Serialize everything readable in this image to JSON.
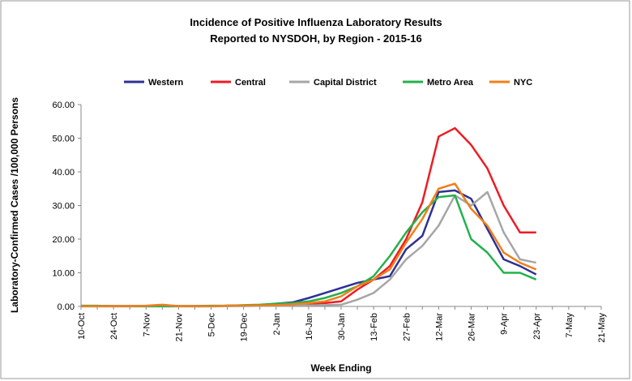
{
  "chart_data": {
    "type": "line",
    "title": "Incidence of Positive Influenza Laboratory Results",
    "subtitle": "Reported to NYSDOH, by Region - 2015-16",
    "x_label": "Week Ending",
    "y_label": "Laboratory-Confirmed Cases /100,000 Persons",
    "categories": [
      "10-Oct",
      null,
      "24-Oct",
      null,
      "7-Nov",
      null,
      "21-Nov",
      null,
      "5-Dec",
      null,
      "19-Dec",
      null,
      "2-Jan",
      null,
      "16-Jan",
      null,
      "30-Jan",
      null,
      "13-Feb",
      null,
      "27-Feb",
      null,
      "12-Mar",
      null,
      "26-Mar",
      null,
      "9-Apr",
      null,
      "23-Apr",
      null,
      "7-May",
      null,
      "21-May"
    ],
    "series": [
      {
        "name": "Western",
        "color": "#2e3192",
        "values": [
          0.1,
          0.1,
          0.1,
          0.1,
          0.1,
          0.2,
          0.1,
          0.1,
          0.1,
          0.2,
          0.3,
          0.4,
          0.8,
          1.2,
          2.5,
          4,
          5.5,
          7,
          8,
          9,
          17,
          21,
          34,
          34.5,
          32,
          23,
          14,
          12,
          9.5,
          null,
          null,
          null,
          null
        ]
      },
      {
        "name": "Central",
        "color": "#ed1c24",
        "values": [
          0.1,
          0.1,
          0.1,
          0.1,
          0.1,
          0.1,
          0.1,
          0.1,
          0.1,
          0.2,
          0.2,
          0.3,
          0.4,
          0.6,
          0.8,
          1,
          1.5,
          5,
          8,
          12,
          20,
          31,
          50.5,
          53,
          48,
          41,
          30,
          22,
          22,
          null,
          null,
          null,
          null
        ]
      },
      {
        "name": "Capital District",
        "color": "#a6a6a6",
        "values": [
          0,
          0,
          0,
          0,
          0,
          0,
          0,
          0,
          0,
          0.1,
          0.1,
          0.2,
          0.2,
          0.3,
          0.3,
          0.4,
          0.5,
          2,
          4,
          8,
          14,
          18,
          24,
          33,
          30,
          34,
          22,
          14,
          13,
          null,
          null,
          null,
          null
        ]
      },
      {
        "name": "Metro Area",
        "color": "#22b14c",
        "values": [
          0.2,
          0.2,
          0.1,
          0.1,
          0.1,
          0.1,
          0.1,
          0.1,
          0.2,
          0.2,
          0.4,
          0.5,
          0.8,
          1,
          1.5,
          2.5,
          4,
          6,
          9,
          15,
          22,
          28,
          32.5,
          33,
          20,
          16,
          10,
          10,
          8,
          null,
          null,
          null,
          null
        ]
      },
      {
        "name": "NYC",
        "color": "#f07f1a",
        "values": [
          0.1,
          0.1,
          0.1,
          0.1,
          0.2,
          0.5,
          0.1,
          0.1,
          0.1,
          0.2,
          0.3,
          0.3,
          0.4,
          0.6,
          1,
          1.5,
          3,
          6,
          8,
          11,
          19,
          26,
          35,
          36.5,
          29,
          24,
          16,
          13,
          11,
          null,
          null,
          null,
          null
        ]
      }
    ],
    "ylim": [
      0,
      60
    ],
    "yticks": [
      {
        "value": 0,
        "label": "0.00"
      },
      {
        "value": 10,
        "label": "10.00"
      },
      {
        "value": 20,
        "label": "20.00"
      },
      {
        "value": 30,
        "label": "30.00"
      },
      {
        "value": 40,
        "label": "40.00"
      },
      {
        "value": 50,
        "label": "50.00"
      },
      {
        "value": 60,
        "label": "60.00"
      }
    ],
    "legend": "top",
    "grid": false
  }
}
